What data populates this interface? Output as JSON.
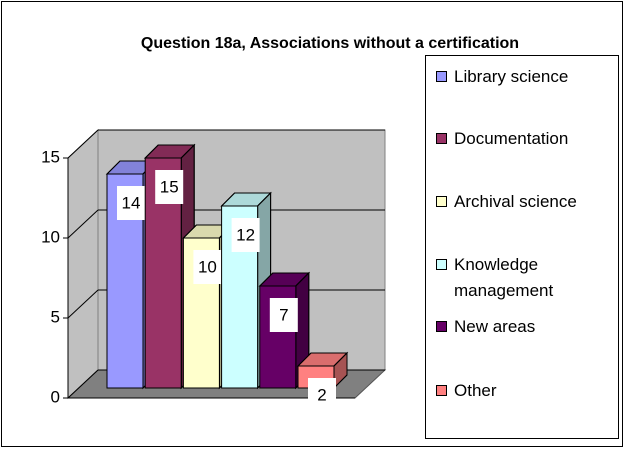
{
  "chart_data": {
    "type": "bar3d",
    "title": "Question 18a, Associations without a certification",
    "categories": [
      null
    ],
    "series": [
      {
        "name": "Library science",
        "color": "#9999ff",
        "values": [
          14
        ]
      },
      {
        "name": "Documentation",
        "color": "#993366",
        "values": [
          15
        ]
      },
      {
        "name": "Archival science",
        "color": "#ffffcc",
        "values": [
          10
        ]
      },
      {
        "name": "Knowledge management",
        "color": "#ccffff",
        "values": [
          12
        ]
      },
      {
        "name": "New areas",
        "color": "#660066",
        "values": [
          7
        ]
      },
      {
        "name": "Other",
        "color": "#ff8080",
        "values": [
          2
        ]
      }
    ],
    "ylim": [
      0,
      15
    ],
    "yticks": [
      0,
      5,
      10,
      15
    ],
    "grid": true,
    "legend": "right"
  }
}
